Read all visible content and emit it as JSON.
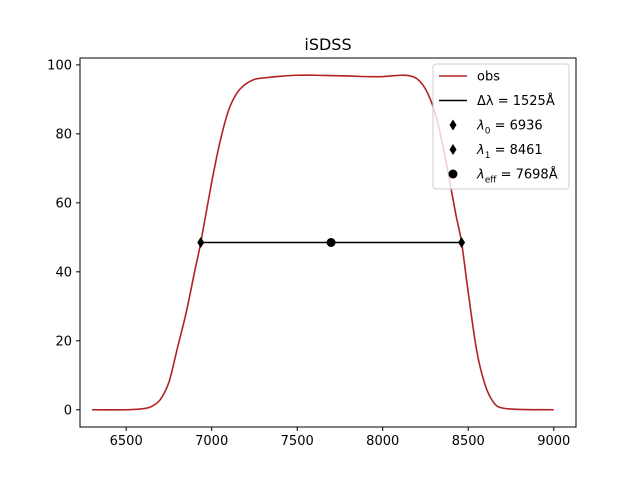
{
  "chart_data": {
    "type": "line",
    "title": "iSDSS",
    "xlabel": "",
    "ylabel": "",
    "xlim": [
      6230,
      9130
    ],
    "ylim": [
      -5,
      102
    ],
    "xticks": [
      6500,
      7000,
      7500,
      8000,
      8500,
      9000
    ],
    "yticks": [
      0,
      20,
      40,
      60,
      80,
      100
    ],
    "grid": false,
    "legend_position": "top-right",
    "series": [
      {
        "name": "obs",
        "type": "line",
        "color": "#b22222",
        "x": [
          6300,
          6500,
          6600,
          6650,
          6700,
          6750,
          6800,
          6850,
          6900,
          6936,
          7000,
          7050,
          7100,
          7150,
          7200,
          7250,
          7300,
          7400,
          7500,
          7600,
          7700,
          7800,
          7900,
          8000,
          8100,
          8150,
          8200,
          8250,
          8300,
          8350,
          8400,
          8430,
          8461,
          8500,
          8550,
          8600,
          8650,
          8700,
          8800,
          9000
        ],
        "y": [
          0,
          0,
          0.3,
          1,
          3,
          8,
          18,
          28,
          40,
          48.5,
          66,
          78,
          87,
          92,
          94.5,
          95.8,
          96.2,
          96.7,
          97,
          97,
          96.9,
          96.8,
          96.6,
          96.6,
          97,
          96.9,
          96,
          93,
          87,
          77,
          64,
          56,
          48.5,
          34,
          17,
          7,
          2,
          0.5,
          0.1,
          0
        ]
      },
      {
        "name": "Δλ = 1525Å",
        "type": "line",
        "color": "#000000",
        "x": [
          6936,
          8461
        ],
        "y": [
          48.5,
          48.5
        ]
      },
      {
        "name": "λ0 = 6936",
        "type": "scatter",
        "marker": "thin-diamond",
        "color": "#000000",
        "x": [
          6936
        ],
        "y": [
          48.5
        ]
      },
      {
        "name": "λ1 = 8461",
        "type": "scatter",
        "marker": "thin-diamond",
        "color": "#000000",
        "x": [
          8461
        ],
        "y": [
          48.5
        ]
      },
      {
        "name": "λeff = 7698Å",
        "type": "scatter",
        "marker": "circle",
        "color": "#000000",
        "x": [
          7698
        ],
        "y": [
          48.5
        ]
      }
    ],
    "legend": [
      {
        "label_main": "obs",
        "label_sub": "",
        "label_rest": "",
        "marker": "line",
        "color": "#b22222"
      },
      {
        "label_main": "Δλ = 1525Å",
        "label_sub": "",
        "label_rest": "",
        "marker": "line",
        "color": "#000000"
      },
      {
        "label_main": "λ",
        "label_sub": "0",
        "label_rest": " = 6936",
        "marker": "thin-diamond",
        "color": "#000000"
      },
      {
        "label_main": "λ",
        "label_sub": "1",
        "label_rest": " = 8461",
        "marker": "thin-diamond",
        "color": "#000000"
      },
      {
        "label_main": "λ",
        "label_sub": "eff",
        "label_rest": " = 7698Å",
        "marker": "circle",
        "color": "#000000"
      }
    ]
  }
}
